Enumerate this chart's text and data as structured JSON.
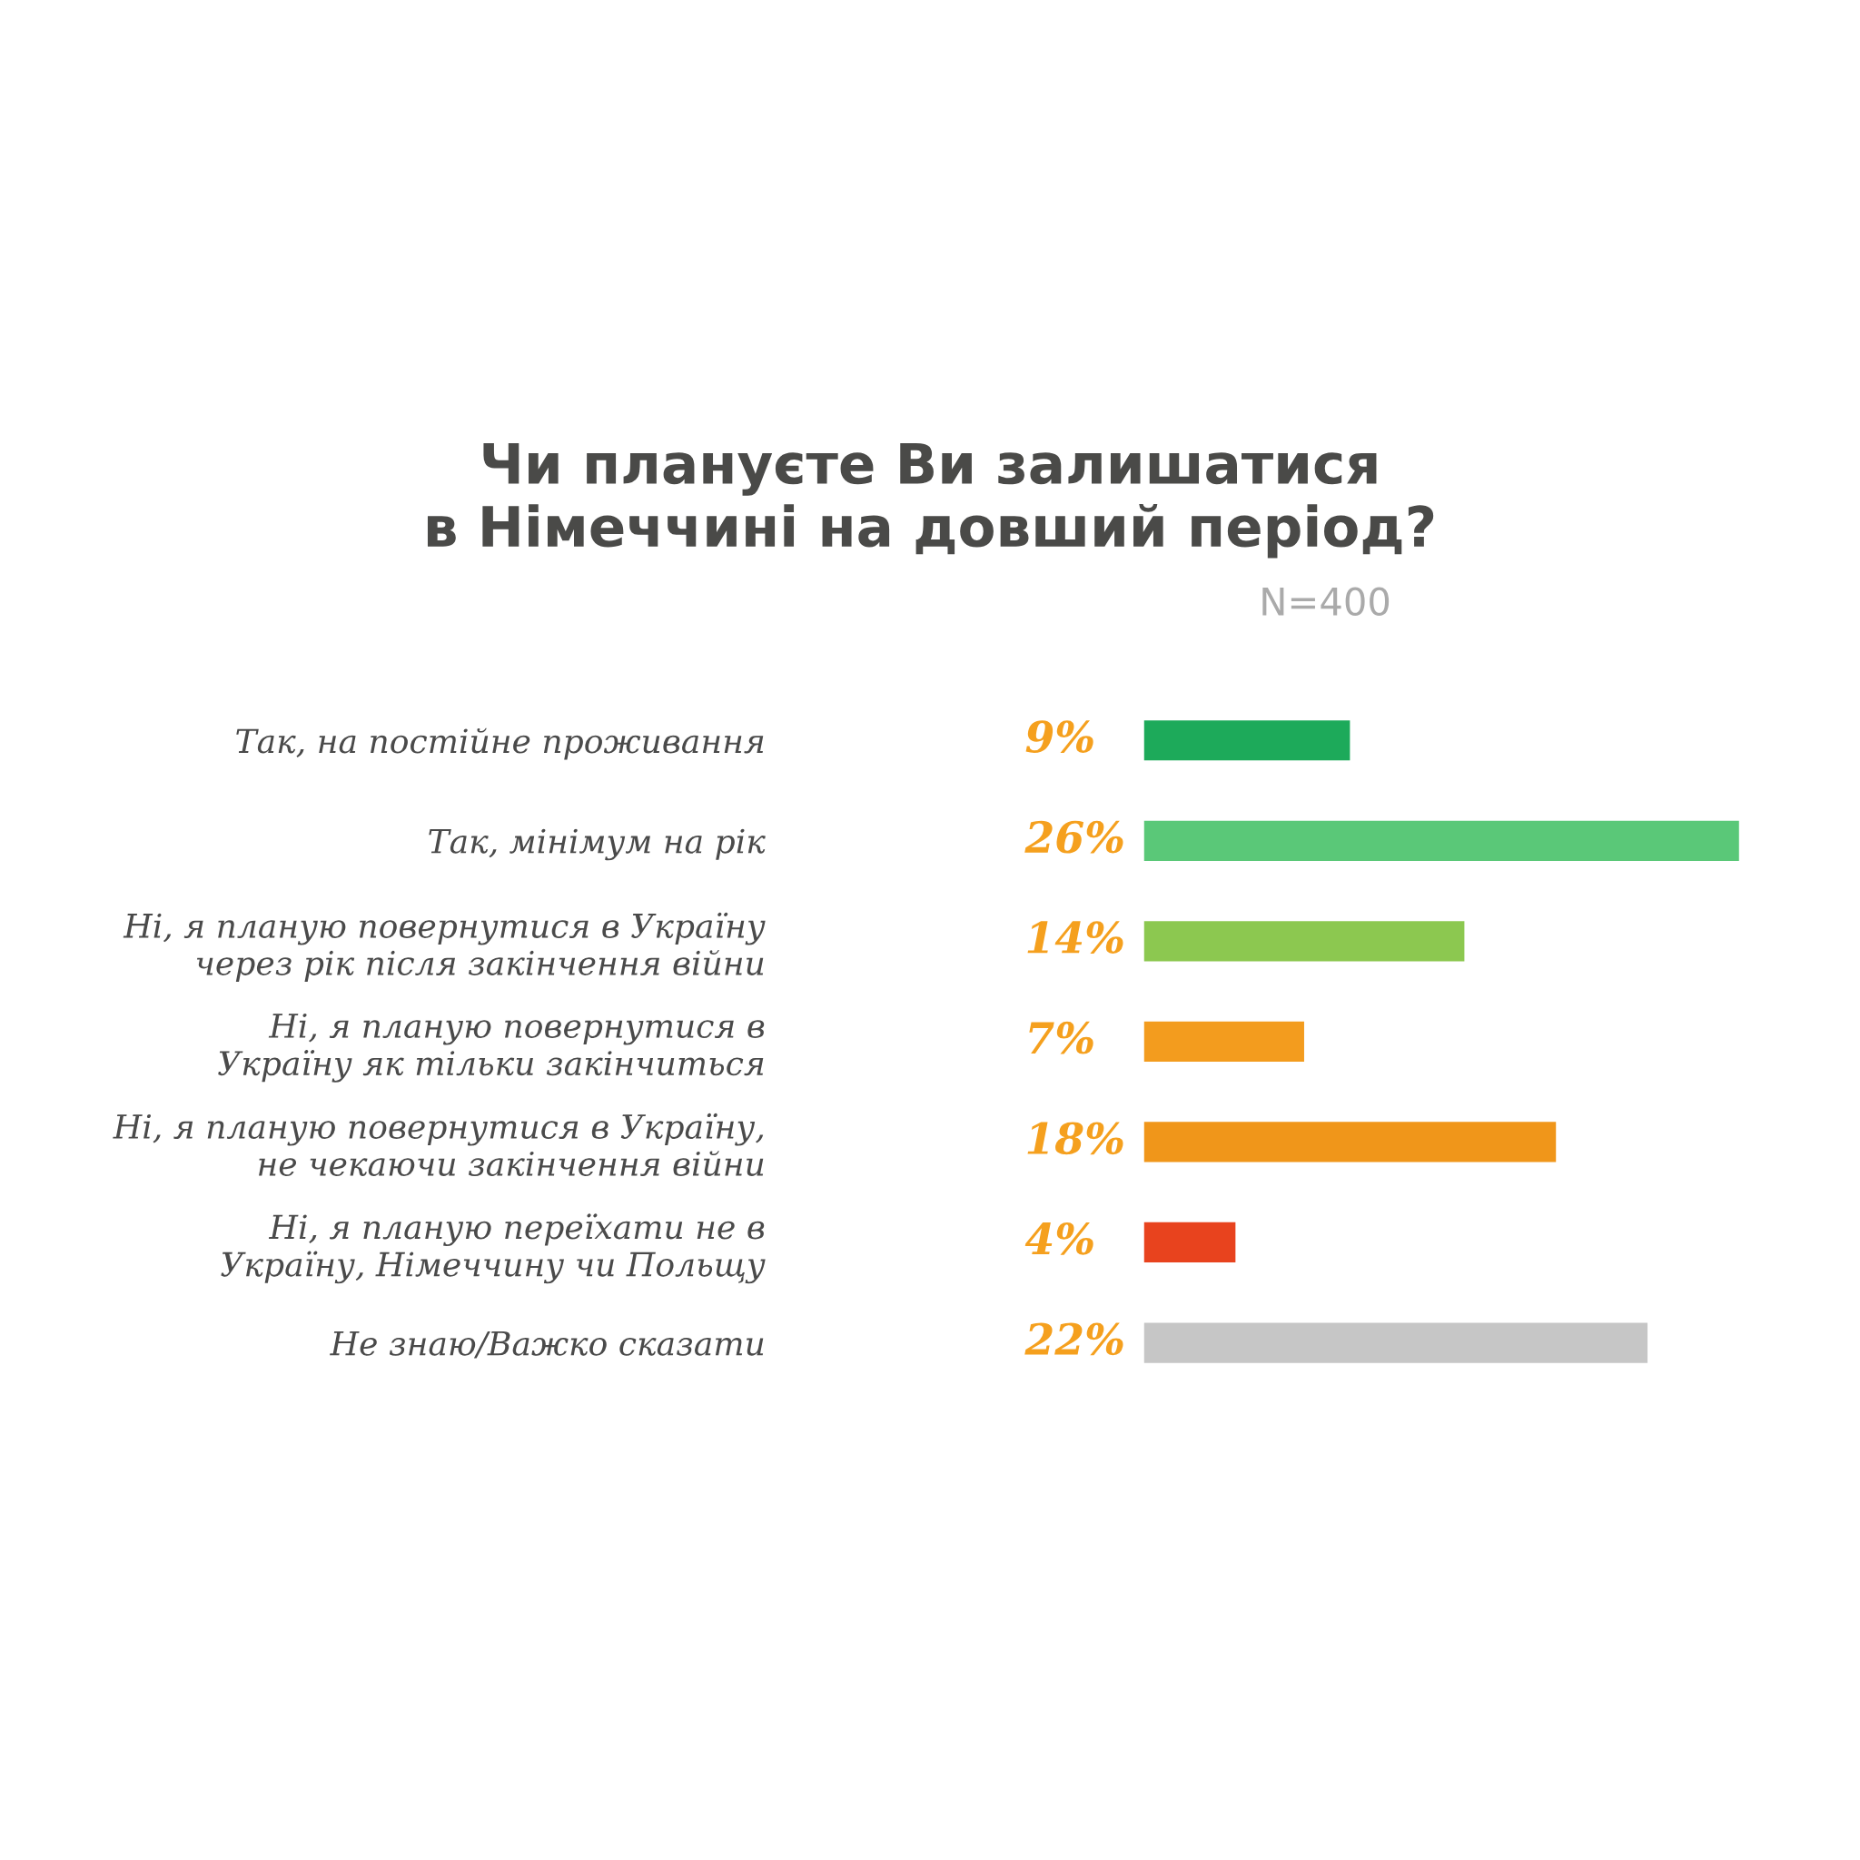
{
  "chart_data": {
    "type": "bar",
    "orientation": "horizontal",
    "title": "Чи плануєте Ви залишатися\nв Німеччині на довший період?",
    "subtitle": "N=400",
    "categories": [
      "Так, на постійне проживання",
      "Так, мінімум на рік",
      "Ні, я планую повернутися в Україну\nчерез рік після закінчення війни",
      "Ні, я планую повернутися в\nУкраїну як тільки закінчиться",
      "Ні, я планую повернутися в Україну,\nне чекаючи закінчення війни",
      "Ні, я планую переїхати не в\nУкраїну, Німеччину чи Польщу",
      "Не знаю/Важко сказати"
    ],
    "values": [
      9,
      26,
      14,
      7,
      18,
      4,
      22
    ],
    "value_labels": [
      "9%",
      "26%",
      "14%",
      "7%",
      "18%",
      "4%",
      "22%"
    ],
    "colors": [
      "#1daa5a",
      "#5ac878",
      "#8cc850",
      "#f39c1e",
      "#f0961a",
      "#e8431e",
      "#c6c6c6"
    ],
    "grid": false,
    "legend": false
  }
}
